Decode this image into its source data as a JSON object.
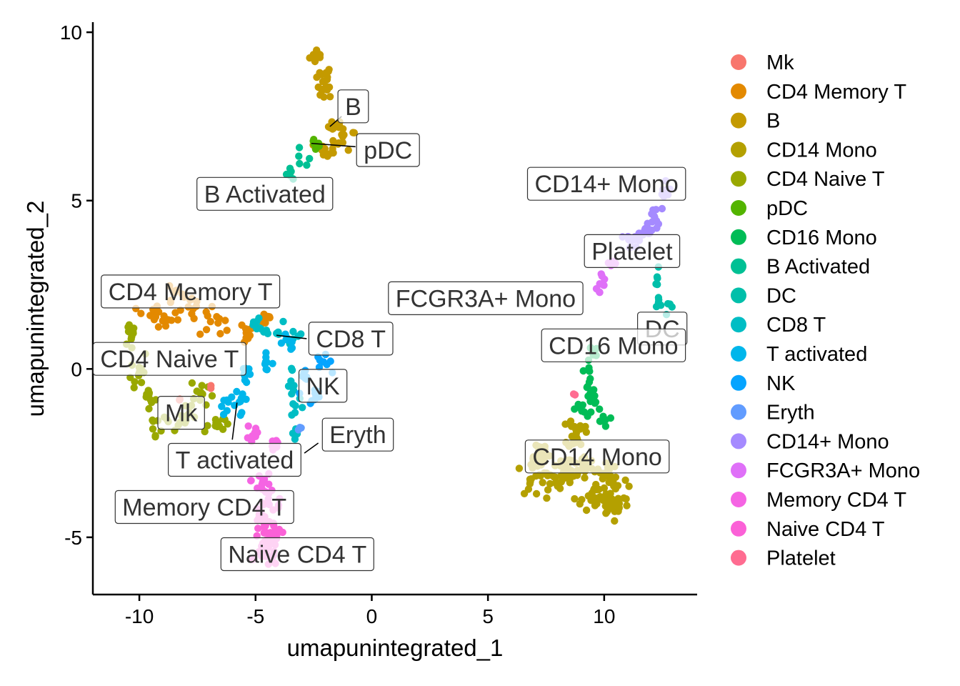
{
  "chart_data": {
    "type": "scatter",
    "xlabel": "umapunintegrated_1",
    "ylabel": "umapunintegrated_2",
    "xlim": [
      -12,
      14
    ],
    "ylim": [
      -6.7,
      10.3
    ],
    "x_ticks": [
      -10,
      -5,
      0,
      5,
      10
    ],
    "y_ticks": [
      -5,
      0,
      5,
      10
    ],
    "x_tick_labels": [
      "-10",
      "-5",
      "0",
      "5",
      "10"
    ],
    "y_tick_labels": [
      "-5",
      "0",
      "5",
      "10"
    ],
    "grid": false,
    "legend_position": "right",
    "legend": [
      {
        "name": "Mk",
        "color": "#F8766D"
      },
      {
        "name": "CD4 Memory T",
        "color": "#E38900"
      },
      {
        "name": "B",
        "color": "#C49A00"
      },
      {
        "name": "CD14 Mono",
        "color": "#B4A000"
      },
      {
        "name": "CD4 Naive T",
        "color": "#99A800"
      },
      {
        "name": "pDC",
        "color": "#53B400"
      },
      {
        "name": "CD16 Mono",
        "color": "#00BC56"
      },
      {
        "name": "B Activated",
        "color": "#00C094"
      },
      {
        "name": "DC",
        "color": "#00BFAA"
      },
      {
        "name": "CD8 T",
        "color": "#00BDC4"
      },
      {
        "name": "T activated",
        "color": "#00B6EB"
      },
      {
        "name": "NK",
        "color": "#06A4FF"
      },
      {
        "name": "Eryth",
        "color": "#619CFF"
      },
      {
        "name": "CD14+ Mono",
        "color": "#A58AFF"
      },
      {
        "name": "FCGR3A+ Mono",
        "color": "#DF70F8"
      },
      {
        "name": "Memory CD4 T",
        "color": "#F564E3"
      },
      {
        "name": "Naive CD4 T",
        "color": "#FB61D7"
      },
      {
        "name": "Platelet",
        "color": "#FF6C91"
      }
    ],
    "cluster_regions": [
      {
        "name": "B",
        "color": "#C49A00",
        "n": 60,
        "pts": [
          [
            -2.3,
            9.3,
            0.3,
            0.2
          ],
          [
            -2.1,
            8.7,
            0.35,
            0.25
          ],
          [
            -2.0,
            8.3,
            0.3,
            0.2
          ],
          [
            -1.5,
            7.2,
            0.3,
            0.15
          ],
          [
            -1.2,
            6.8,
            0.45,
            0.25
          ],
          [
            -1.9,
            6.5,
            0.5,
            0.2
          ]
        ]
      },
      {
        "name": "pDC",
        "color": "#53B400",
        "n": 8,
        "pts": [
          [
            -2.6,
            6.7,
            0.2,
            0.15
          ],
          [
            -2.3,
            6.6,
            0.2,
            0.1
          ]
        ]
      },
      {
        "name": "B Activated",
        "color": "#00C094",
        "n": 10,
        "pts": [
          [
            -3.0,
            6.2,
            0.3,
            0.25
          ],
          [
            -3.5,
            5.8,
            0.25,
            0.2
          ]
        ]
      },
      {
        "name": "CD4 Memory T",
        "color": "#E38900",
        "n": 70,
        "pts": [
          [
            -8.5,
            2.2,
            0.6,
            0.3
          ],
          [
            -7.5,
            1.7,
            0.7,
            0.3
          ],
          [
            -6.7,
            1.3,
            0.6,
            0.3
          ],
          [
            -8.8,
            1.5,
            0.4,
            0.3
          ],
          [
            -9.6,
            1.6,
            0.4,
            0.3
          ],
          [
            -5.5,
            1.1,
            0.4,
            0.3
          ],
          [
            -4.6,
            1.5,
            0.3,
            0.2
          ]
        ]
      },
      {
        "name": "CD4 Naive T",
        "color": "#99A800",
        "n": 80,
        "pts": [
          [
            -10.3,
            1.0,
            0.3,
            0.5
          ],
          [
            -10.0,
            0.0,
            0.3,
            0.5
          ],
          [
            -9.6,
            -0.9,
            0.3,
            0.5
          ],
          [
            -9.0,
            -1.6,
            0.5,
            0.3
          ],
          [
            -8.0,
            -1.5,
            0.5,
            0.3
          ],
          [
            -7.3,
            -0.7,
            0.4,
            0.4
          ],
          [
            -6.7,
            -1.6,
            0.3,
            0.2
          ]
        ]
      },
      {
        "name": "Mk",
        "color": "#F8766D",
        "n": 4,
        "pts": [
          [
            -8.3,
            -1.0,
            0.3,
            0.2
          ],
          [
            -6.9,
            -0.6,
            0.2,
            0.2
          ]
        ]
      },
      {
        "name": "CD8 T",
        "color": "#00BDC4",
        "n": 40,
        "pts": [
          [
            -4.9,
            1.3,
            0.4,
            0.2
          ],
          [
            -4.3,
            1.2,
            0.4,
            0.2
          ],
          [
            -3.4,
            1.0,
            0.35,
            0.2
          ],
          [
            -3.4,
            -0.4,
            0.2,
            0.4
          ],
          [
            -3.2,
            -1.3,
            0.2,
            0.3
          ],
          [
            -3.3,
            -1.9,
            0.15,
            0.25
          ]
        ]
      },
      {
        "name": "T activated",
        "color": "#00B6EB",
        "n": 40,
        "pts": [
          [
            -5.4,
            -0.1,
            0.2,
            0.4
          ],
          [
            -5.6,
            -0.9,
            0.2,
            0.3
          ],
          [
            -6.2,
            -1.1,
            0.3,
            0.2
          ],
          [
            -3.6,
            0.8,
            0.3,
            0.2
          ],
          [
            -4.6,
            0.2,
            0.3,
            0.2
          ]
        ]
      },
      {
        "name": "NK",
        "color": "#06A4FF",
        "n": 25,
        "pts": [
          [
            -2.1,
            0.2,
            0.3,
            0.2
          ],
          [
            -2.9,
            -0.4,
            0.25,
            0.3
          ],
          [
            -2.4,
            -0.8,
            0.2,
            0.2
          ]
        ]
      },
      {
        "name": "Eryth",
        "color": "#619CFF",
        "n": 3,
        "pts": [
          [
            -3.1,
            -1.8,
            0.1,
            0.1
          ]
        ]
      },
      {
        "name": "Memory CD4 T",
        "color": "#F564E3",
        "n": 35,
        "pts": [
          [
            -5.1,
            -1.9,
            0.25,
            0.4
          ],
          [
            -4.2,
            -2.2,
            0.2,
            0.3
          ],
          [
            -4.7,
            -3.3,
            0.4,
            0.4
          ],
          [
            -4.3,
            -3.9,
            0.5,
            0.4
          ]
        ]
      },
      {
        "name": "Naive CD4 T",
        "color": "#FB61D7",
        "n": 55,
        "pts": [
          [
            -4.6,
            -4.5,
            0.6,
            0.4
          ],
          [
            -4.4,
            -5.0,
            0.6,
            0.3
          ],
          [
            -4.5,
            -5.5,
            0.4,
            0.3
          ]
        ]
      },
      {
        "name": "CD14+ Mono",
        "color": "#A58AFF",
        "n": 45,
        "pts": [
          [
            12.6,
            5.0,
            0.25,
            0.4
          ],
          [
            12.2,
            4.5,
            0.25,
            0.3
          ],
          [
            11.9,
            4.1,
            0.25,
            0.2
          ],
          [
            11.3,
            3.8,
            0.3,
            0.2
          ]
        ]
      },
      {
        "name": "FCGR3A+ Mono",
        "color": "#DF70F8",
        "n": 15,
        "pts": [
          [
            10.3,
            3.2,
            0.2,
            0.15
          ],
          [
            9.9,
            2.7,
            0.15,
            0.2
          ],
          [
            9.8,
            2.4,
            0.1,
            0.15
          ]
        ]
      },
      {
        "name": "Platelet",
        "color": "#FF6C91",
        "n": 2,
        "pts": [
          [
            8.8,
            -0.7,
            0.1,
            0.1
          ]
        ]
      },
      {
        "name": "DC",
        "color": "#00BFAA",
        "n": 15,
        "pts": [
          [
            12.3,
            2.6,
            0.1,
            0.3
          ],
          [
            12.4,
            2.1,
            0.15,
            0.2
          ],
          [
            12.8,
            1.8,
            0.15,
            0.15
          ]
        ]
      },
      {
        "name": "CD16 Mono",
        "color": "#00BC56",
        "n": 40,
        "pts": [
          [
            9.5,
            0.5,
            0.2,
            0.3
          ],
          [
            9.3,
            -0.3,
            0.25,
            0.35
          ],
          [
            9.5,
            -0.8,
            0.2,
            0.2
          ],
          [
            9.0,
            -1.2,
            0.2,
            0.2
          ],
          [
            9.9,
            -1.6,
            0.2,
            0.3
          ]
        ]
      },
      {
        "name": "CD14 Mono",
        "color": "#B4A000",
        "n": 200,
        "pts": [
          [
            7.2,
            -3.3,
            0.9,
            0.4
          ],
          [
            8.3,
            -3.1,
            0.7,
            0.4
          ],
          [
            9.3,
            -3.0,
            0.8,
            0.4
          ],
          [
            10.3,
            -3.3,
            0.6,
            0.5
          ],
          [
            10.5,
            -4.0,
            0.5,
            0.3
          ],
          [
            9.6,
            -3.9,
            0.5,
            0.3
          ],
          [
            8.8,
            -1.9,
            0.3,
            0.4
          ],
          [
            7.2,
            -2.5,
            0.4,
            0.3
          ]
        ]
      }
    ],
    "cluster_labels": [
      {
        "text": "B",
        "x": -0.8,
        "y": 7.8
      },
      {
        "text": "pDC",
        "x": 0.7,
        "y": 6.5
      },
      {
        "text": "B Activated",
        "x": -4.6,
        "y": 5.2
      },
      {
        "text": "CD14+ Mono",
        "x": 10.1,
        "y": 5.5
      },
      {
        "text": "Platelet",
        "x": 11.2,
        "y": 3.5
      },
      {
        "text": "FCGR3A+ Mono",
        "x": 4.9,
        "y": 2.1
      },
      {
        "text": "CD4 Memory T",
        "x": -7.8,
        "y": 2.3
      },
      {
        "text": "CD8 T",
        "x": -0.9,
        "y": 0.9
      },
      {
        "text": "DC",
        "x": 12.5,
        "y": 1.2
      },
      {
        "text": "CD16 Mono",
        "x": 10.4,
        "y": 0.7
      },
      {
        "text": "CD4 Naive T",
        "x": -8.7,
        "y": 0.3
      },
      {
        "text": "NK",
        "x": -2.1,
        "y": -0.5
      },
      {
        "text": "Mk",
        "x": -8.2,
        "y": -1.3
      },
      {
        "text": "Eryth",
        "x": -0.6,
        "y": -1.95
      },
      {
        "text": "T activated",
        "x": -5.9,
        "y": -2.7
      },
      {
        "text": "CD14 Mono",
        "x": 9.7,
        "y": -2.6
      },
      {
        "text": "Memory CD4 T",
        "x": -7.2,
        "y": -4.1
      },
      {
        "text": "Naive CD4 T",
        "x": -3.2,
        "y": -5.5
      }
    ],
    "label_connectors": [
      {
        "from": [
          -1.3,
          7.5
        ],
        "to": [
          -1.8,
          7.2
        ]
      },
      {
        "from": [
          -0.7,
          6.6
        ],
        "to": [
          -2.6,
          6.7
        ]
      },
      {
        "from": [
          -2.8,
          0.9
        ],
        "to": [
          -4.1,
          1.0
        ]
      },
      {
        "from": [
          -6.0,
          -2.1
        ],
        "to": [
          -5.8,
          -1.0
        ]
      },
      {
        "from": [
          -2.3,
          -2.2
        ],
        "to": [
          -2.9,
          -2.5
        ]
      }
    ]
  }
}
